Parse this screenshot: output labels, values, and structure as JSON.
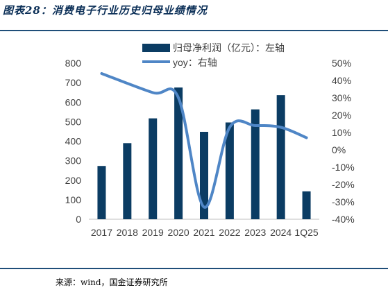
{
  "title": "图表28：消费电子行业历史归母业绩情况",
  "source": "来源：wind，国金证券研究所",
  "colors": {
    "bar": "#0b3c63",
    "line": "#4f86c6",
    "rule": "#1f4e79",
    "title": "#0b2f57",
    "axis_text": "#404040"
  },
  "chart_data": {
    "type": "bar",
    "categories": [
      "2017",
      "2018",
      "2019",
      "2020",
      "2021",
      "2022",
      "2023",
      "2024",
      "1Q25"
    ],
    "series": [
      {
        "name": "归母净利润（亿元）：左轴",
        "type": "bar",
        "axis": "left",
        "values": [
          273,
          390,
          517,
          675,
          448,
          496,
          563,
          636,
          143
        ]
      },
      {
        "name": "yoy：右轴",
        "type": "line",
        "axis": "right",
        "values": [
          44,
          null,
          33,
          30,
          -33,
          13,
          14,
          13,
          7
        ]
      }
    ],
    "left_ticks": [
      "0",
      "100",
      "200",
      "300",
      "400",
      "500",
      "600",
      "700",
      "800"
    ],
    "right_ticks": [
      "-40%",
      "-30%",
      "-20%",
      "-10%",
      "0%",
      "10%",
      "20%",
      "30%",
      "40%",
      "50%"
    ],
    "ylim_left": [
      0,
      800
    ],
    "ylim_right": [
      -40,
      50
    ],
    "grid": false,
    "legend_position": "top"
  }
}
